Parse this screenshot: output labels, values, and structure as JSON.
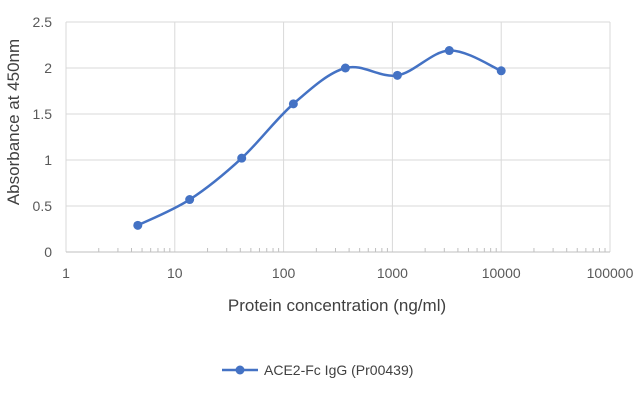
{
  "chart_data": {
    "type": "scatter",
    "title": "",
    "xlabel": "Protein concentration (ng/ml)",
    "ylabel": "Absorbance at 450nm",
    "x_scale": "log",
    "xlim": [
      1,
      100000
    ],
    "ylim": [
      0,
      2.5
    ],
    "x_ticks": [
      1,
      10,
      100,
      1000,
      10000,
      100000
    ],
    "x_tick_labels": [
      "1",
      "10",
      "100",
      "1000",
      "10000",
      "100000"
    ],
    "y_ticks": [
      0,
      0.5,
      1,
      1.5,
      2,
      2.5
    ],
    "y_tick_labels": [
      "0",
      "0.5",
      "1",
      "1.5",
      "2",
      "2.5"
    ],
    "grid": true,
    "legend_position": "bottom",
    "series": [
      {
        "name": "ACE2-Fc IgG (Pr00439)",
        "color": "#4472C4",
        "line": "smooth",
        "x": [
          4.57,
          13.7,
          41.2,
          123,
          370,
          1111,
          3333,
          10000
        ],
        "y": [
          0.29,
          0.57,
          1.02,
          1.61,
          2.0,
          1.92,
          2.19,
          1.97
        ]
      }
    ]
  }
}
